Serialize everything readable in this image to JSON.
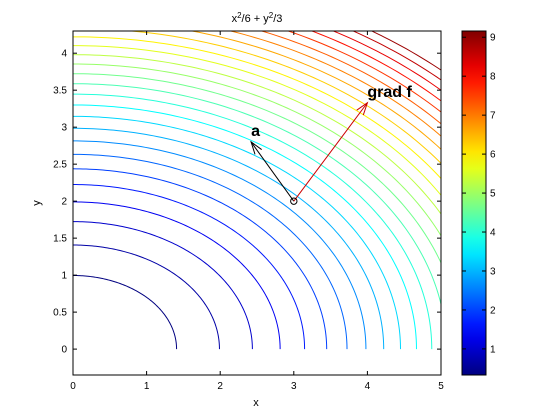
{
  "figure": {
    "background": "#ffffff"
  },
  "chart_data": {
    "type": "contour",
    "function": "x^2/6 + y^2/3",
    "title": {
      "base1": "x",
      "sup1": "2",
      "mid": "/6 + y",
      "sup2": "2",
      "end": "/3"
    },
    "xlabel": "x",
    "ylabel": "y",
    "xlim": [
      0,
      5
    ],
    "ylim": [
      -0.35,
      4.3
    ],
    "xticks": [
      0,
      1,
      2,
      3,
      4,
      5
    ],
    "yticks": [
      0,
      0.5,
      1,
      1.5,
      2,
      2.5,
      3,
      3.5,
      4
    ],
    "ytick_labels": [
      "0",
      "0.5",
      "1",
      "1.5",
      "2",
      "2.5",
      "3",
      "3.5",
      "4"
    ],
    "grid": false,
    "levels": [
      0.33,
      0.66,
      0.99,
      1.32,
      1.65,
      1.98,
      2.31,
      2.64,
      2.97,
      3.3,
      3.63,
      3.96,
      4.29,
      4.62,
      4.95,
      5.28,
      5.61,
      5.94,
      6.27,
      6.6,
      6.93,
      7.26,
      7.59,
      7.92,
      8.25,
      8.58,
      8.91
    ],
    "colormap": "jet",
    "clim": [
      0.33,
      9.16
    ],
    "colorbar": {
      "ticks": [
        1,
        2,
        3,
        4,
        5,
        6,
        7,
        8,
        9
      ],
      "tick_labels": [
        "1",
        "2",
        "3",
        "4",
        "5",
        "6",
        "7",
        "8",
        "9"
      ]
    },
    "point": {
      "x": 3,
      "y": 2
    },
    "arrows": [
      {
        "name": "a",
        "label": "a",
        "from": [
          3,
          2
        ],
        "to": [
          2.42,
          2.8
        ],
        "color": "#000000"
      },
      {
        "name": "grad f",
        "label": "grad f",
        "from": [
          3,
          2
        ],
        "to": [
          4.0,
          3.33
        ],
        "color": "#cc0000"
      }
    ]
  }
}
